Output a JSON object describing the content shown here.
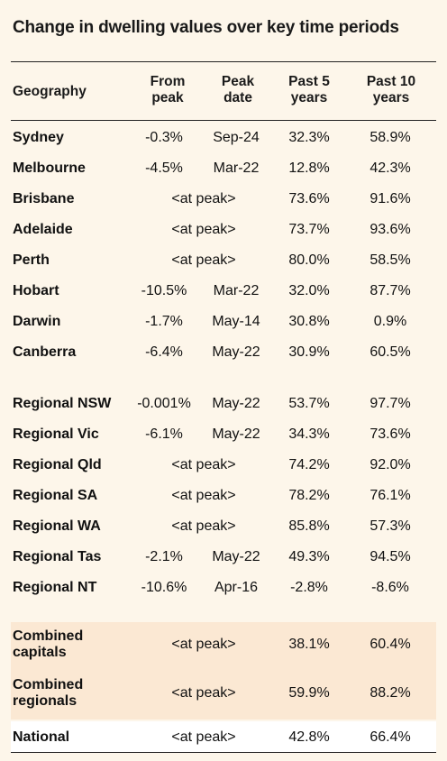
{
  "title": "Change in dwelling values over key time periods",
  "headers": {
    "geography": "Geography",
    "from_peak": [
      "From",
      "peak"
    ],
    "peak_date": [
      "Peak",
      "date"
    ],
    "past5": [
      "Past 5",
      "years"
    ],
    "past10": [
      "Past 10",
      "years"
    ]
  },
  "capitals": [
    {
      "geo": "Sydney",
      "from": "-0.3%",
      "peak": "Sep-24",
      "p5": "32.3%",
      "p10": "58.9%"
    },
    {
      "geo": "Melbourne",
      "from": "-4.5%",
      "peak": "Mar-22",
      "p5": "12.8%",
      "p10": "42.3%"
    },
    {
      "geo": "Brisbane",
      "span": "<at peak>",
      "p5": "73.6%",
      "p10": "91.6%"
    },
    {
      "geo": "Adelaide",
      "span": "<at peak>",
      "p5": "73.7%",
      "p10": "93.6%"
    },
    {
      "geo": "Perth",
      "span": "<at peak>",
      "p5": "80.0%",
      "p10": "58.5%"
    },
    {
      "geo": "Hobart",
      "from": "-10.5%",
      "peak": "Mar-22",
      "p5": "32.0%",
      "p10": "87.7%"
    },
    {
      "geo": "Darwin",
      "from": "-1.7%",
      "peak": "May-14",
      "p5": "30.8%",
      "p10": "0.9%"
    },
    {
      "geo": "Canberra",
      "from": "-6.4%",
      "peak": "May-22",
      "p5": "30.9%",
      "p10": "60.5%"
    }
  ],
  "regionals": [
    {
      "geo": "Regional NSW",
      "from": "-0.001%",
      "peak": "May-22",
      "p5": "53.7%",
      "p10": "97.7%"
    },
    {
      "geo": "Regional Vic",
      "from": "-6.1%",
      "peak": "May-22",
      "p5": "34.3%",
      "p10": "73.6%"
    },
    {
      "geo": "Regional Qld",
      "span": "<at peak>",
      "p5": "74.2%",
      "p10": "92.0%"
    },
    {
      "geo": "Regional SA",
      "span": "<at peak>",
      "p5": "78.2%",
      "p10": "76.1%"
    },
    {
      "geo": "Regional WA",
      "span": "<at peak>",
      "p5": "85.8%",
      "p10": "57.3%"
    },
    {
      "geo": "Regional Tas",
      "from": "-2.1%",
      "peak": "May-22",
      "p5": "49.3%",
      "p10": "94.5%"
    },
    {
      "geo": "Regional NT",
      "from": "-10.6%",
      "peak": "Apr-16",
      "p5": "-2.8%",
      "p10": "-8.6%"
    }
  ],
  "combined": [
    {
      "geo": [
        "Combined",
        "capitals"
      ],
      "span": "<at peak>",
      "p5": "38.1%",
      "p10": "60.4%"
    },
    {
      "geo": [
        "Combined",
        "regionals"
      ],
      "span": "<at peak>",
      "p5": "59.9%",
      "p10": "88.2%"
    }
  ],
  "national": {
    "geo": "National",
    "span": "<at peak>",
    "p5": "42.8%",
    "p10": "66.4%"
  },
  "colors": {
    "background": "#fdf6ea",
    "combined_shade": "#fbe8d3",
    "national_bg": "#ffffff",
    "rule": "#222222"
  }
}
